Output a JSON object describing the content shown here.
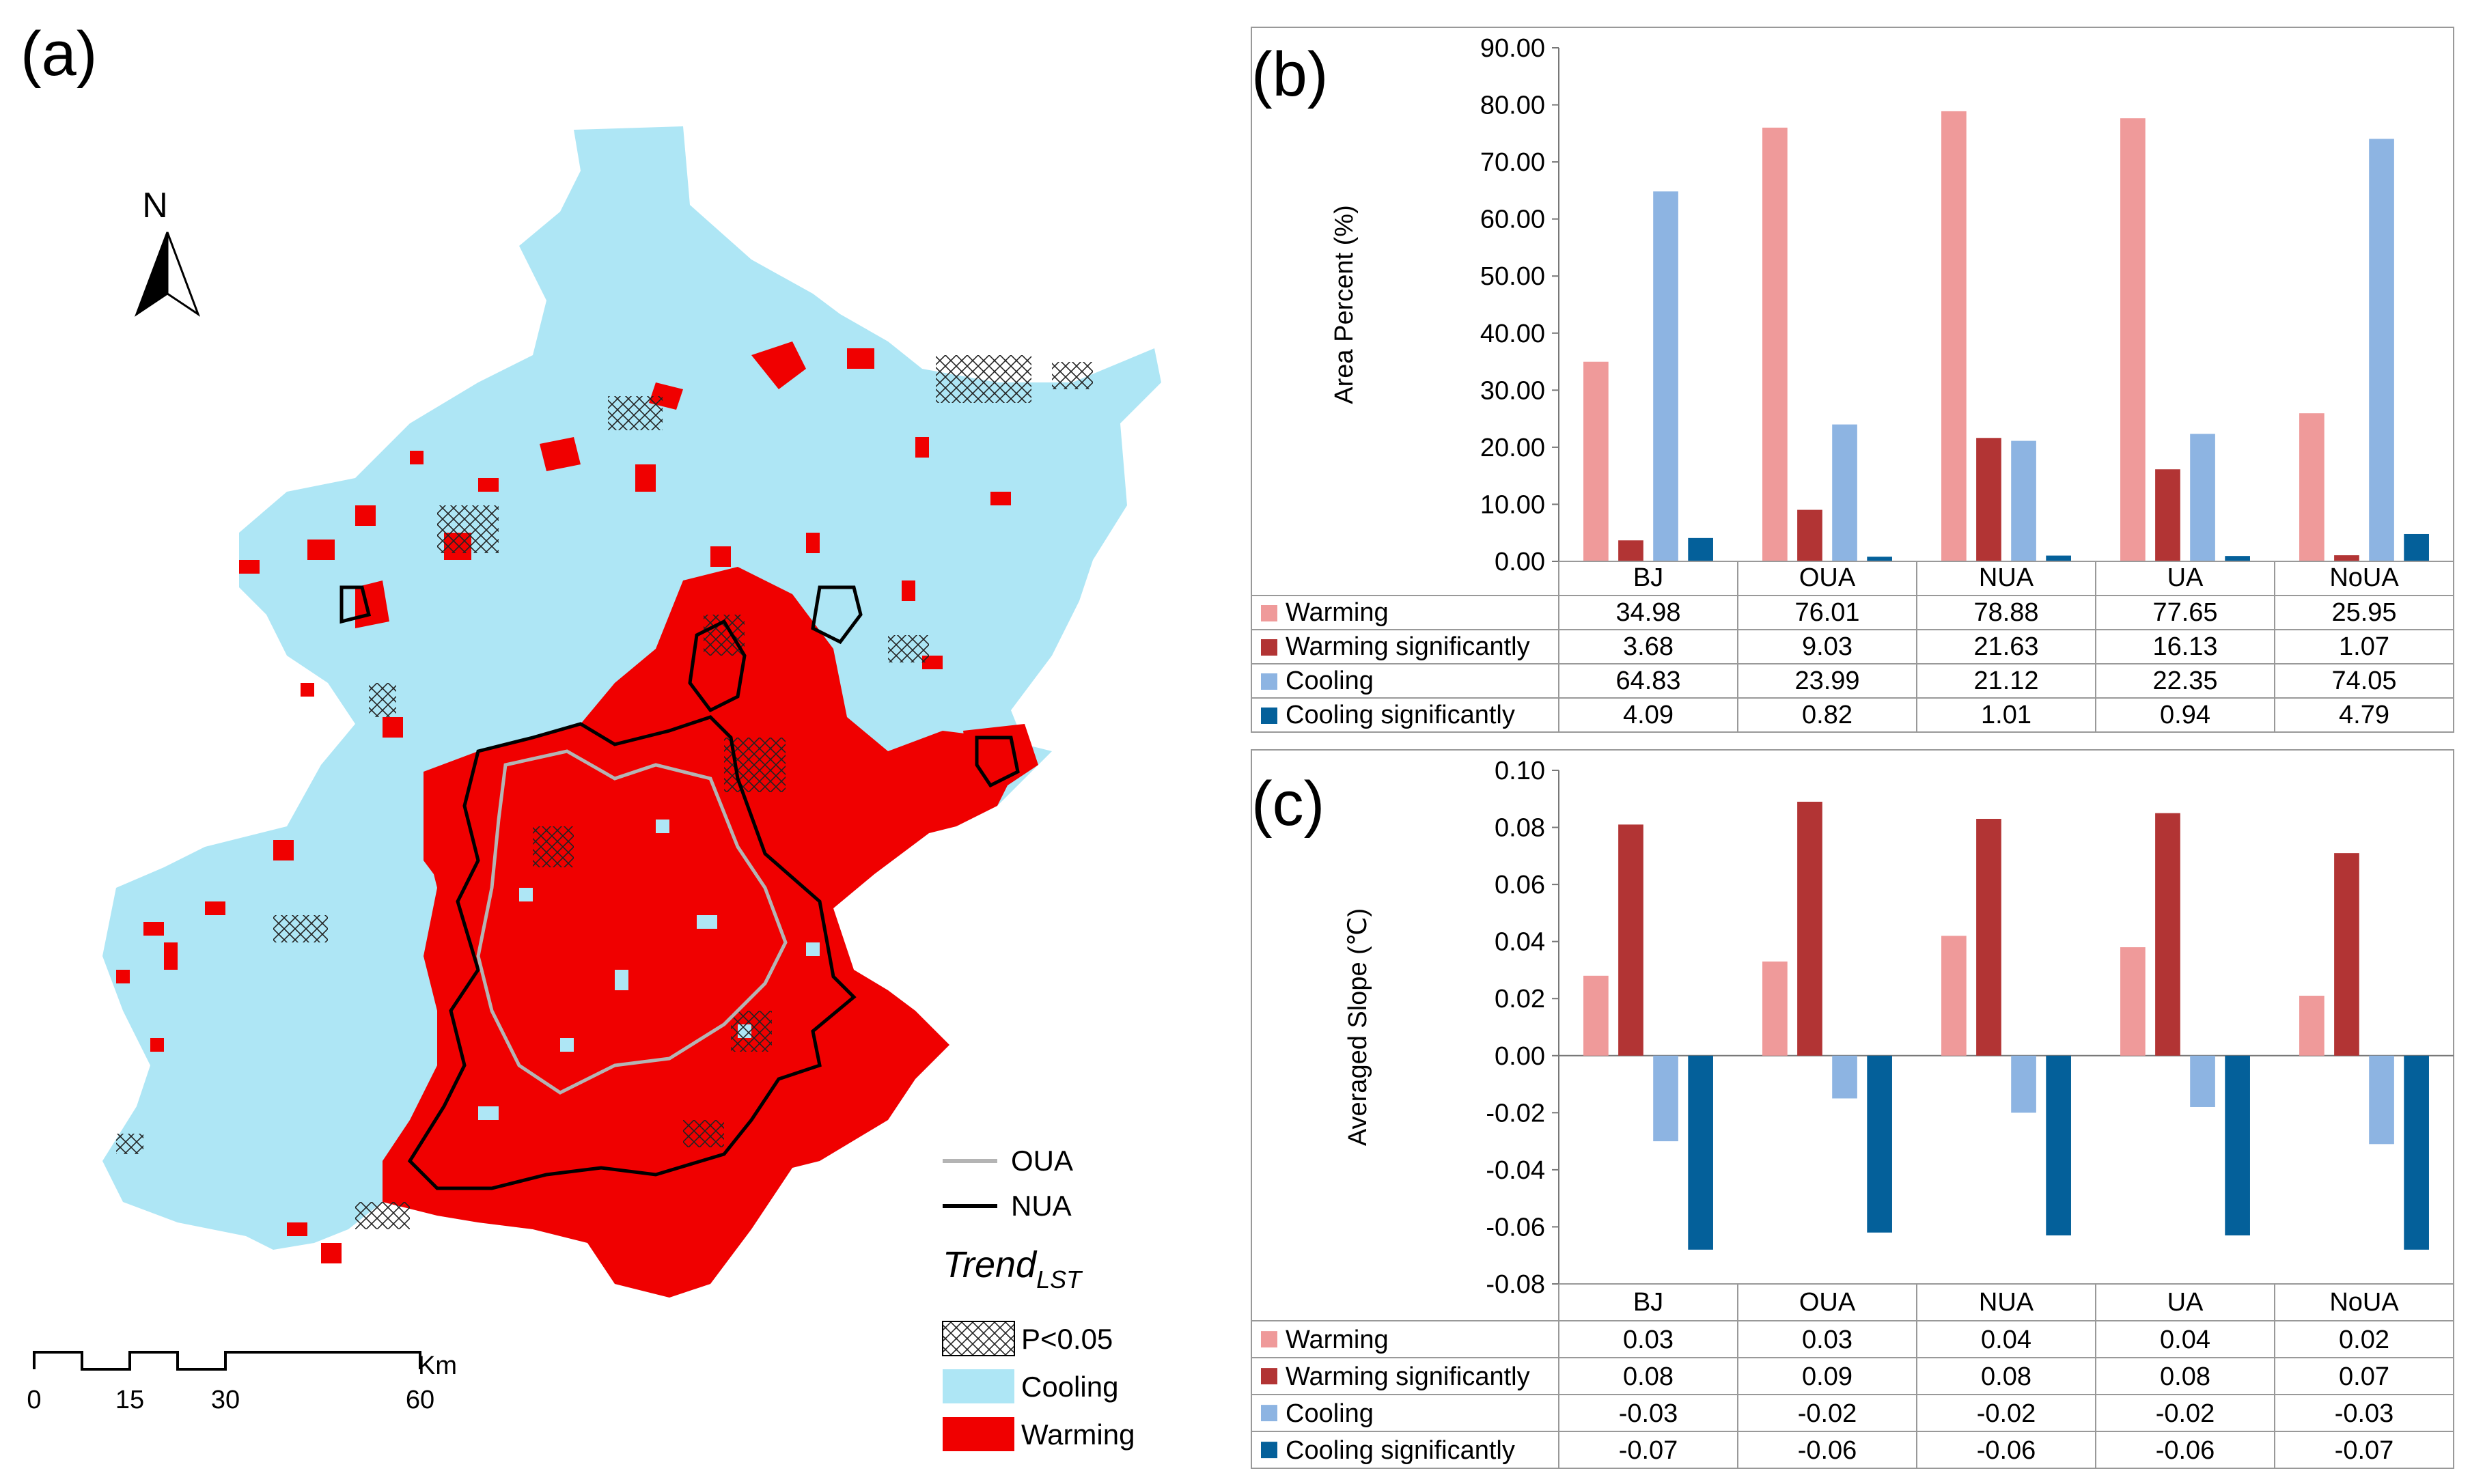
{
  "panels": {
    "a": {
      "label": "(a)",
      "north": "N",
      "scale": {
        "unit": "Km",
        "ticks": [
          "0",
          "15",
          "30",
          "60"
        ]
      },
      "legend": {
        "oua": "OUA",
        "nua": "NUA",
        "trend_main": "Trend",
        "trend_sub": "LST",
        "sig": "P<0.05",
        "cooling": "Cooling",
        "warming": "Warming"
      },
      "colors": {
        "cooling": "#aee6f5",
        "warming": "#f00000",
        "oua": "#b4b4b4",
        "nua": "#000000"
      }
    },
    "b": {
      "label": "(b)"
    },
    "c": {
      "label": "(c)"
    }
  },
  "chart_data": [
    {
      "id": "b",
      "type": "bar",
      "categories": [
        "BJ",
        "OUA",
        "NUA",
        "UA",
        "NoUA"
      ],
      "ylabel": "Area Percent (%)",
      "ylim": [
        0,
        90
      ],
      "yticks": [
        "0.00",
        "10.00",
        "20.00",
        "30.00",
        "40.00",
        "50.00",
        "60.00",
        "70.00",
        "80.00",
        "90.00"
      ],
      "series": [
        {
          "name": "Warming",
          "color": "#ef9a9a",
          "values": [
            34.98,
            76.01,
            78.88,
            77.65,
            25.95
          ]
        },
        {
          "name": "Warming significantly",
          "color": "#b23434",
          "values": [
            3.68,
            9.03,
            21.63,
            16.13,
            1.07
          ]
        },
        {
          "name": "Cooling",
          "color": "#8db4e2",
          "values": [
            64.83,
            23.99,
            21.12,
            22.35,
            74.05
          ]
        },
        {
          "name": "Cooling significantly",
          "color": "#04609a",
          "values": [
            4.09,
            0.82,
            1.01,
            0.94,
            4.79
          ]
        }
      ],
      "table": [
        [
          "34.98",
          "76.01",
          "78.88",
          "77.65",
          "25.95"
        ],
        [
          "3.68",
          "9.03",
          "21.63",
          "16.13",
          "1.07"
        ],
        [
          "64.83",
          "23.99",
          "21.12",
          "22.35",
          "74.05"
        ],
        [
          "4.09",
          "0.82",
          "1.01",
          "0.94",
          "4.79"
        ]
      ]
    },
    {
      "id": "c",
      "type": "bar",
      "categories": [
        "BJ",
        "OUA",
        "NUA",
        "UA",
        "NoUA"
      ],
      "ylabel": "Averaged Slope (℃)",
      "ylim": [
        -0.08,
        0.1
      ],
      "yticks": [
        "-0.08",
        "-0.06",
        "-0.04",
        "-0.02",
        "0.00",
        "0.02",
        "0.04",
        "0.06",
        "0.08",
        "0.10"
      ],
      "series": [
        {
          "name": "Warming",
          "color": "#ef9a9a",
          "values": [
            0.028,
            0.033,
            0.042,
            0.038,
            0.021
          ]
        },
        {
          "name": "Warming significantly",
          "color": "#b23434",
          "values": [
            0.081,
            0.089,
            0.083,
            0.085,
            0.071
          ]
        },
        {
          "name": "Cooling",
          "color": "#8db4e2",
          "values": [
            -0.03,
            -0.015,
            -0.02,
            -0.018,
            -0.031
          ]
        },
        {
          "name": "Cooling significantly",
          "color": "#04609a",
          "values": [
            -0.068,
            -0.062,
            -0.063,
            -0.063,
            -0.068
          ]
        }
      ],
      "table": [
        [
          "0.03",
          "0.03",
          "0.04",
          "0.04",
          "0.02"
        ],
        [
          "0.08",
          "0.09",
          "0.08",
          "0.08",
          "0.07"
        ],
        [
          "-0.03",
          "-0.02",
          "-0.02",
          "-0.02",
          "-0.03"
        ],
        [
          "-0.07",
          "-0.06",
          "-0.06",
          "-0.06",
          "-0.07"
        ]
      ]
    }
  ]
}
